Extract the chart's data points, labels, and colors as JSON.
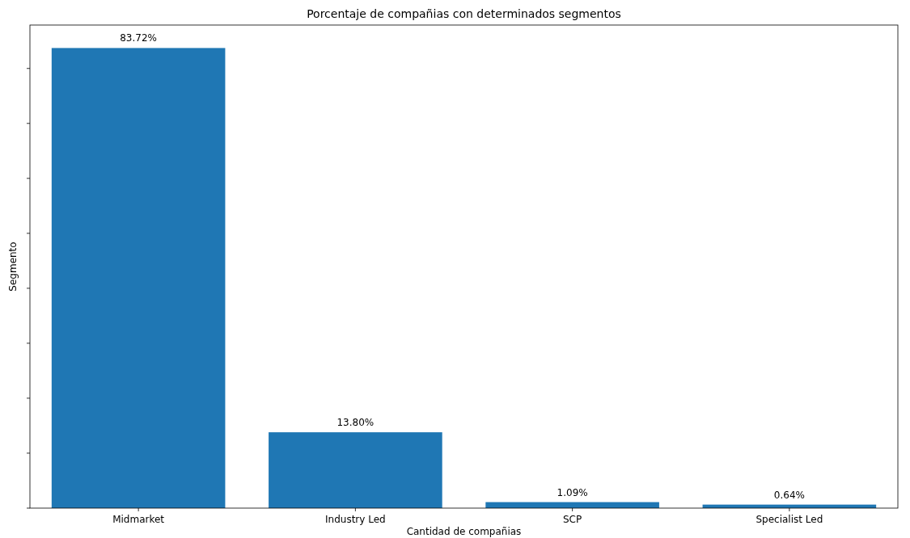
{
  "chart_data": {
    "type": "bar",
    "title": "Porcentaje de compañias con determinados segmentos",
    "xlabel": "Cantidad de compañias",
    "ylabel": "Segmento",
    "categories": [
      "Midmarket",
      "Industry Led",
      "SCP",
      "Specialist Led"
    ],
    "values": [
      83.72,
      13.8,
      1.09,
      0.64
    ],
    "value_labels": [
      "83.72%",
      "13.80%",
      "1.09%",
      "0.64%"
    ],
    "color": "#1f77b4",
    "ylim": [
      0,
      87.9
    ],
    "yticks": [
      {
        "value": 0,
        "label": null
      },
      {
        "value": 10,
        "label": null
      },
      {
        "value": 20,
        "label": null
      },
      {
        "value": 30,
        "label": null
      },
      {
        "value": 40,
        "label": null
      },
      {
        "value": 50,
        "label": null
      },
      {
        "value": 60,
        "label": null
      },
      {
        "value": 70,
        "label": null
      },
      {
        "value": 80,
        "label": null
      }
    ],
    "tick_labels": "x"
  }
}
